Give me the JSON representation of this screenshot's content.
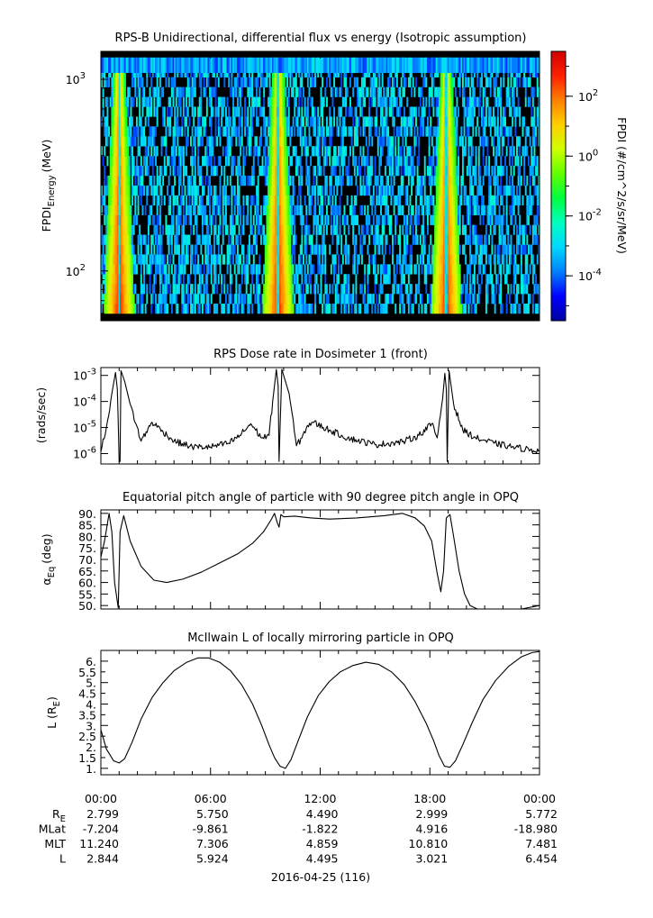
{
  "colors": {
    "background": "#ffffff",
    "trace": "#000000",
    "colormap": [
      "#0000a0",
      "#0000ff",
      "#0080ff",
      "#00d8ff",
      "#00ffc0",
      "#00ff40",
      "#60ff00",
      "#d0ff00",
      "#ffd000",
      "#ff8000",
      "#ff2000",
      "#d00000"
    ]
  },
  "chart_data": [
    {
      "type": "heatmap",
      "title": "RPS-B  Unidirectional, differential flux vs energy (Isotropic assumption)",
      "ylabel_main": "FPDI",
      "ylabel_sub": "Energy",
      "ylabel_unit": "(MeV)",
      "yscale": "log",
      "ylim": [
        55,
        1400
      ],
      "yticks": [
        {
          "base": "10",
          "exp": "3",
          "value": 1000
        },
        {
          "base": "10",
          "exp": "2",
          "value": 100
        }
      ],
      "x_hours": [
        0,
        24
      ],
      "belt_peaks_hours": [
        1.0,
        9.7,
        18.9
      ],
      "colorbar": {
        "label": "FPDI (#/cm^2/s/sr/MeV)",
        "scale": "log",
        "range_exp": [
          -5.5,
          3.5
        ],
        "ticks": [
          {
            "base": "10",
            "exp": "2",
            "value": 100
          },
          {
            "base": "10",
            "exp": "0",
            "value": 1
          },
          {
            "base": "10",
            "exp": "-2",
            "value": 0.01
          },
          {
            "base": "10",
            "exp": "-4",
            "value": 0.0001
          }
        ]
      }
    },
    {
      "type": "line",
      "title": "RPS  Dose rate in Dosimeter 1 (front)",
      "ylabel": "(rads/sec)",
      "yscale": "log",
      "ylim": [
        4e-07,
        0.002
      ],
      "yticks": [
        {
          "base": "10",
          "exp": "-3",
          "value": 0.001
        },
        {
          "base": "10",
          "exp": "-4",
          "value": 0.0001
        },
        {
          "base": "10",
          "exp": "-5",
          "value": 1e-05
        },
        {
          "base": "10",
          "exp": "-6",
          "value": 1e-06
        }
      ],
      "x": [
        0,
        0.3,
        0.6,
        0.8,
        0.9,
        1.0,
        1.05,
        1.1,
        1.3,
        1.6,
        2.2,
        2.8,
        3.4,
        4.0,
        5.0,
        6.0,
        7.0,
        7.6,
        8.2,
        8.8,
        9.2,
        9.45,
        9.6,
        9.7,
        9.75,
        9.9,
        10.3,
        10.7,
        11.0,
        11.3,
        11.6,
        12.5,
        13.5,
        15.0,
        16.5,
        17.4,
        18.1,
        18.4,
        18.7,
        18.82,
        18.9,
        18.95,
        19.05,
        19.3,
        19.8,
        20.5,
        21.5,
        22.5,
        23.5,
        24
      ],
      "y": [
        1.2e-06,
        1e-05,
        0.0002,
        0.0013,
        0.0003,
        5e-07,
        5e-07,
        0.0015,
        0.0006,
        8e-05,
        3e-06,
        1.6e-05,
        7e-06,
        3e-06,
        1.8e-06,
        1.8e-06,
        2.5e-06,
        5e-06,
        1.4e-05,
        4e-06,
        5e-06,
        0.0002,
        0.0017,
        0.0004,
        5e-07,
        0.0017,
        0.0002,
        2e-06,
        4e-06,
        1.2e-05,
        1.6e-05,
        8e-06,
        4e-06,
        2.2e-06,
        2.8e-06,
        5e-06,
        1.4e-05,
        4e-06,
        0.00013,
        0.0012,
        0.0003,
        5e-07,
        0.0015,
        8e-05,
        8e-06,
        4e-06,
        2.5e-06,
        1.8e-06,
        1.4e-06,
        1.3e-06
      ]
    },
    {
      "type": "line",
      "title": "Equatorial pitch angle of particle with 90 degree pitch angle in OPQ",
      "ylabel_main": "α",
      "ylabel_sub": "Eq",
      "ylabel_unit": "(deg)",
      "ylim": [
        48.5,
        91.5
      ],
      "yticks": [
        90,
        85,
        80,
        75,
        70,
        65,
        60,
        55,
        50
      ],
      "x": [
        0,
        0.2,
        0.45,
        0.6,
        0.75,
        0.95,
        1.05,
        1.25,
        1.6,
        2.2,
        2.9,
        3.6,
        4.5,
        5.5,
        6.5,
        7.5,
        8.3,
        8.9,
        9.3,
        9.5,
        9.65,
        9.75,
        9.85,
        10.0,
        10.6,
        11.5,
        12.5,
        14.0,
        15.5,
        16.5,
        17.2,
        17.7,
        18.1,
        18.4,
        18.6,
        18.75,
        18.9,
        19.1,
        19.3,
        19.6,
        19.9,
        20.2,
        20.6,
        21.2,
        22.0,
        23.0,
        24
      ],
      "y": [
        71,
        78,
        90,
        82,
        60,
        49,
        82,
        89,
        78,
        67,
        61,
        60,
        61.5,
        64.5,
        68.5,
        72.5,
        77,
        82,
        87,
        90,
        86,
        84,
        89.5,
        88.5,
        88.8,
        88,
        87.5,
        88,
        89,
        90,
        88,
        84.5,
        78,
        64,
        56,
        65,
        88,
        89.5,
        80,
        65,
        55,
        50,
        48.5,
        48.5,
        48.5,
        48.5,
        50
      ]
    },
    {
      "type": "line",
      "title": "McIlwain L of locally mirroring particle in OPQ",
      "ylabel_main": "L (R",
      "ylabel_sub": "E",
      "ylabel_unit": ")",
      "ylim": [
        0.7,
        6.5
      ],
      "yticks": [
        6,
        5.5,
        5,
        4.5,
        4,
        3.5,
        3,
        2.5,
        2,
        1.5,
        1
      ],
      "yticklabels": [
        "6.",
        "5.5",
        "5.",
        "4.5",
        "4.",
        "3.5",
        "3.",
        "2.5",
        "2.",
        "1.5",
        "1."
      ],
      "x": [
        0,
        0.3,
        0.7,
        1.0,
        1.3,
        1.7,
        2.2,
        2.8,
        3.4,
        4.0,
        4.7,
        5.3,
        5.9,
        6.5,
        7.1,
        7.7,
        8.3,
        8.8,
        9.2,
        9.5,
        9.8,
        10.1,
        10.4,
        10.8,
        11.3,
        11.9,
        12.5,
        13.1,
        13.8,
        14.5,
        15.2,
        15.9,
        16.6,
        17.2,
        17.8,
        18.2,
        18.5,
        18.8,
        19.1,
        19.4,
        19.8,
        20.3,
        20.9,
        21.6,
        22.3,
        23.0,
        23.6,
        24
      ],
      "y": [
        2.8,
        1.9,
        1.35,
        1.25,
        1.45,
        2.2,
        3.3,
        4.3,
        5.0,
        5.55,
        5.95,
        6.15,
        6.15,
        5.95,
        5.55,
        4.9,
        4.0,
        3.0,
        2.1,
        1.5,
        1.1,
        1.0,
        1.4,
        2.3,
        3.4,
        4.4,
        5.05,
        5.5,
        5.8,
        5.95,
        5.85,
        5.5,
        4.9,
        4.1,
        3.1,
        2.3,
        1.6,
        1.1,
        1.05,
        1.35,
        2.1,
        3.1,
        4.2,
        5.1,
        5.75,
        6.2,
        6.4,
        6.45
      ]
    }
  ],
  "x_axis": {
    "tick_labels": [
      "00:00",
      "06:00",
      "12:00",
      "18:00",
      "00:00"
    ],
    "tick_hours": [
      0,
      6,
      12,
      18,
      24
    ],
    "minor_hours": [
      1,
      2,
      3,
      4,
      5,
      7,
      8,
      9,
      10,
      11,
      13,
      14,
      15,
      16,
      17,
      19,
      20,
      21,
      22,
      23
    ],
    "date_label": "2016-04-25 (116)"
  },
  "ephemeris": [
    {
      "name_main": "R",
      "name_sub": "E",
      "values": [
        "2.799",
        "5.750",
        "4.490",
        "2.999",
        "5.772"
      ]
    },
    {
      "name_main": "MLat",
      "name_sub": "",
      "values": [
        "-7.204",
        "-9.861",
        "-1.822",
        "4.916",
        "-18.980"
      ]
    },
    {
      "name_main": "MLT",
      "name_sub": "",
      "values": [
        "11.240",
        "7.306",
        "4.859",
        "10.810",
        "7.481"
      ]
    },
    {
      "name_main": "L",
      "name_sub": "",
      "values": [
        "2.844",
        "5.924",
        "4.495",
        "3.021",
        "6.454"
      ]
    }
  ]
}
